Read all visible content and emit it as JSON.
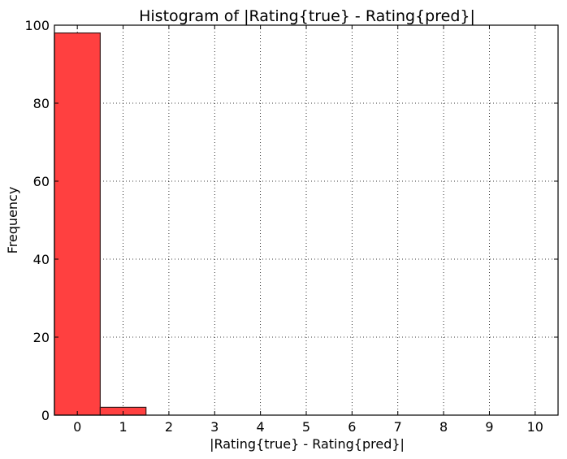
{
  "chart_data": {
    "type": "bar",
    "title": "Histogram of |Rating{true} - Rating{pred}|",
    "xlabel": "|Rating{true} - Rating{pred}|",
    "ylabel": "Frequency",
    "categories": [
      "0",
      "1",
      "2",
      "3",
      "4",
      "5",
      "6",
      "7",
      "8",
      "9",
      "10"
    ],
    "bins": [
      {
        "start": -0.5,
        "end": 0.5,
        "value": 98
      },
      {
        "start": 0.5,
        "end": 1.5,
        "value": 2
      }
    ],
    "xlim": [
      -0.5,
      10.5
    ],
    "ylim": [
      0,
      100
    ],
    "xticks": [
      0,
      1,
      2,
      3,
      4,
      5,
      6,
      7,
      8,
      9,
      10
    ],
    "yticks": [
      0,
      20,
      40,
      60,
      80,
      100
    ],
    "grid": true,
    "bar_color": "#ff4040",
    "bar_edge_color": "#3a1a1a"
  }
}
